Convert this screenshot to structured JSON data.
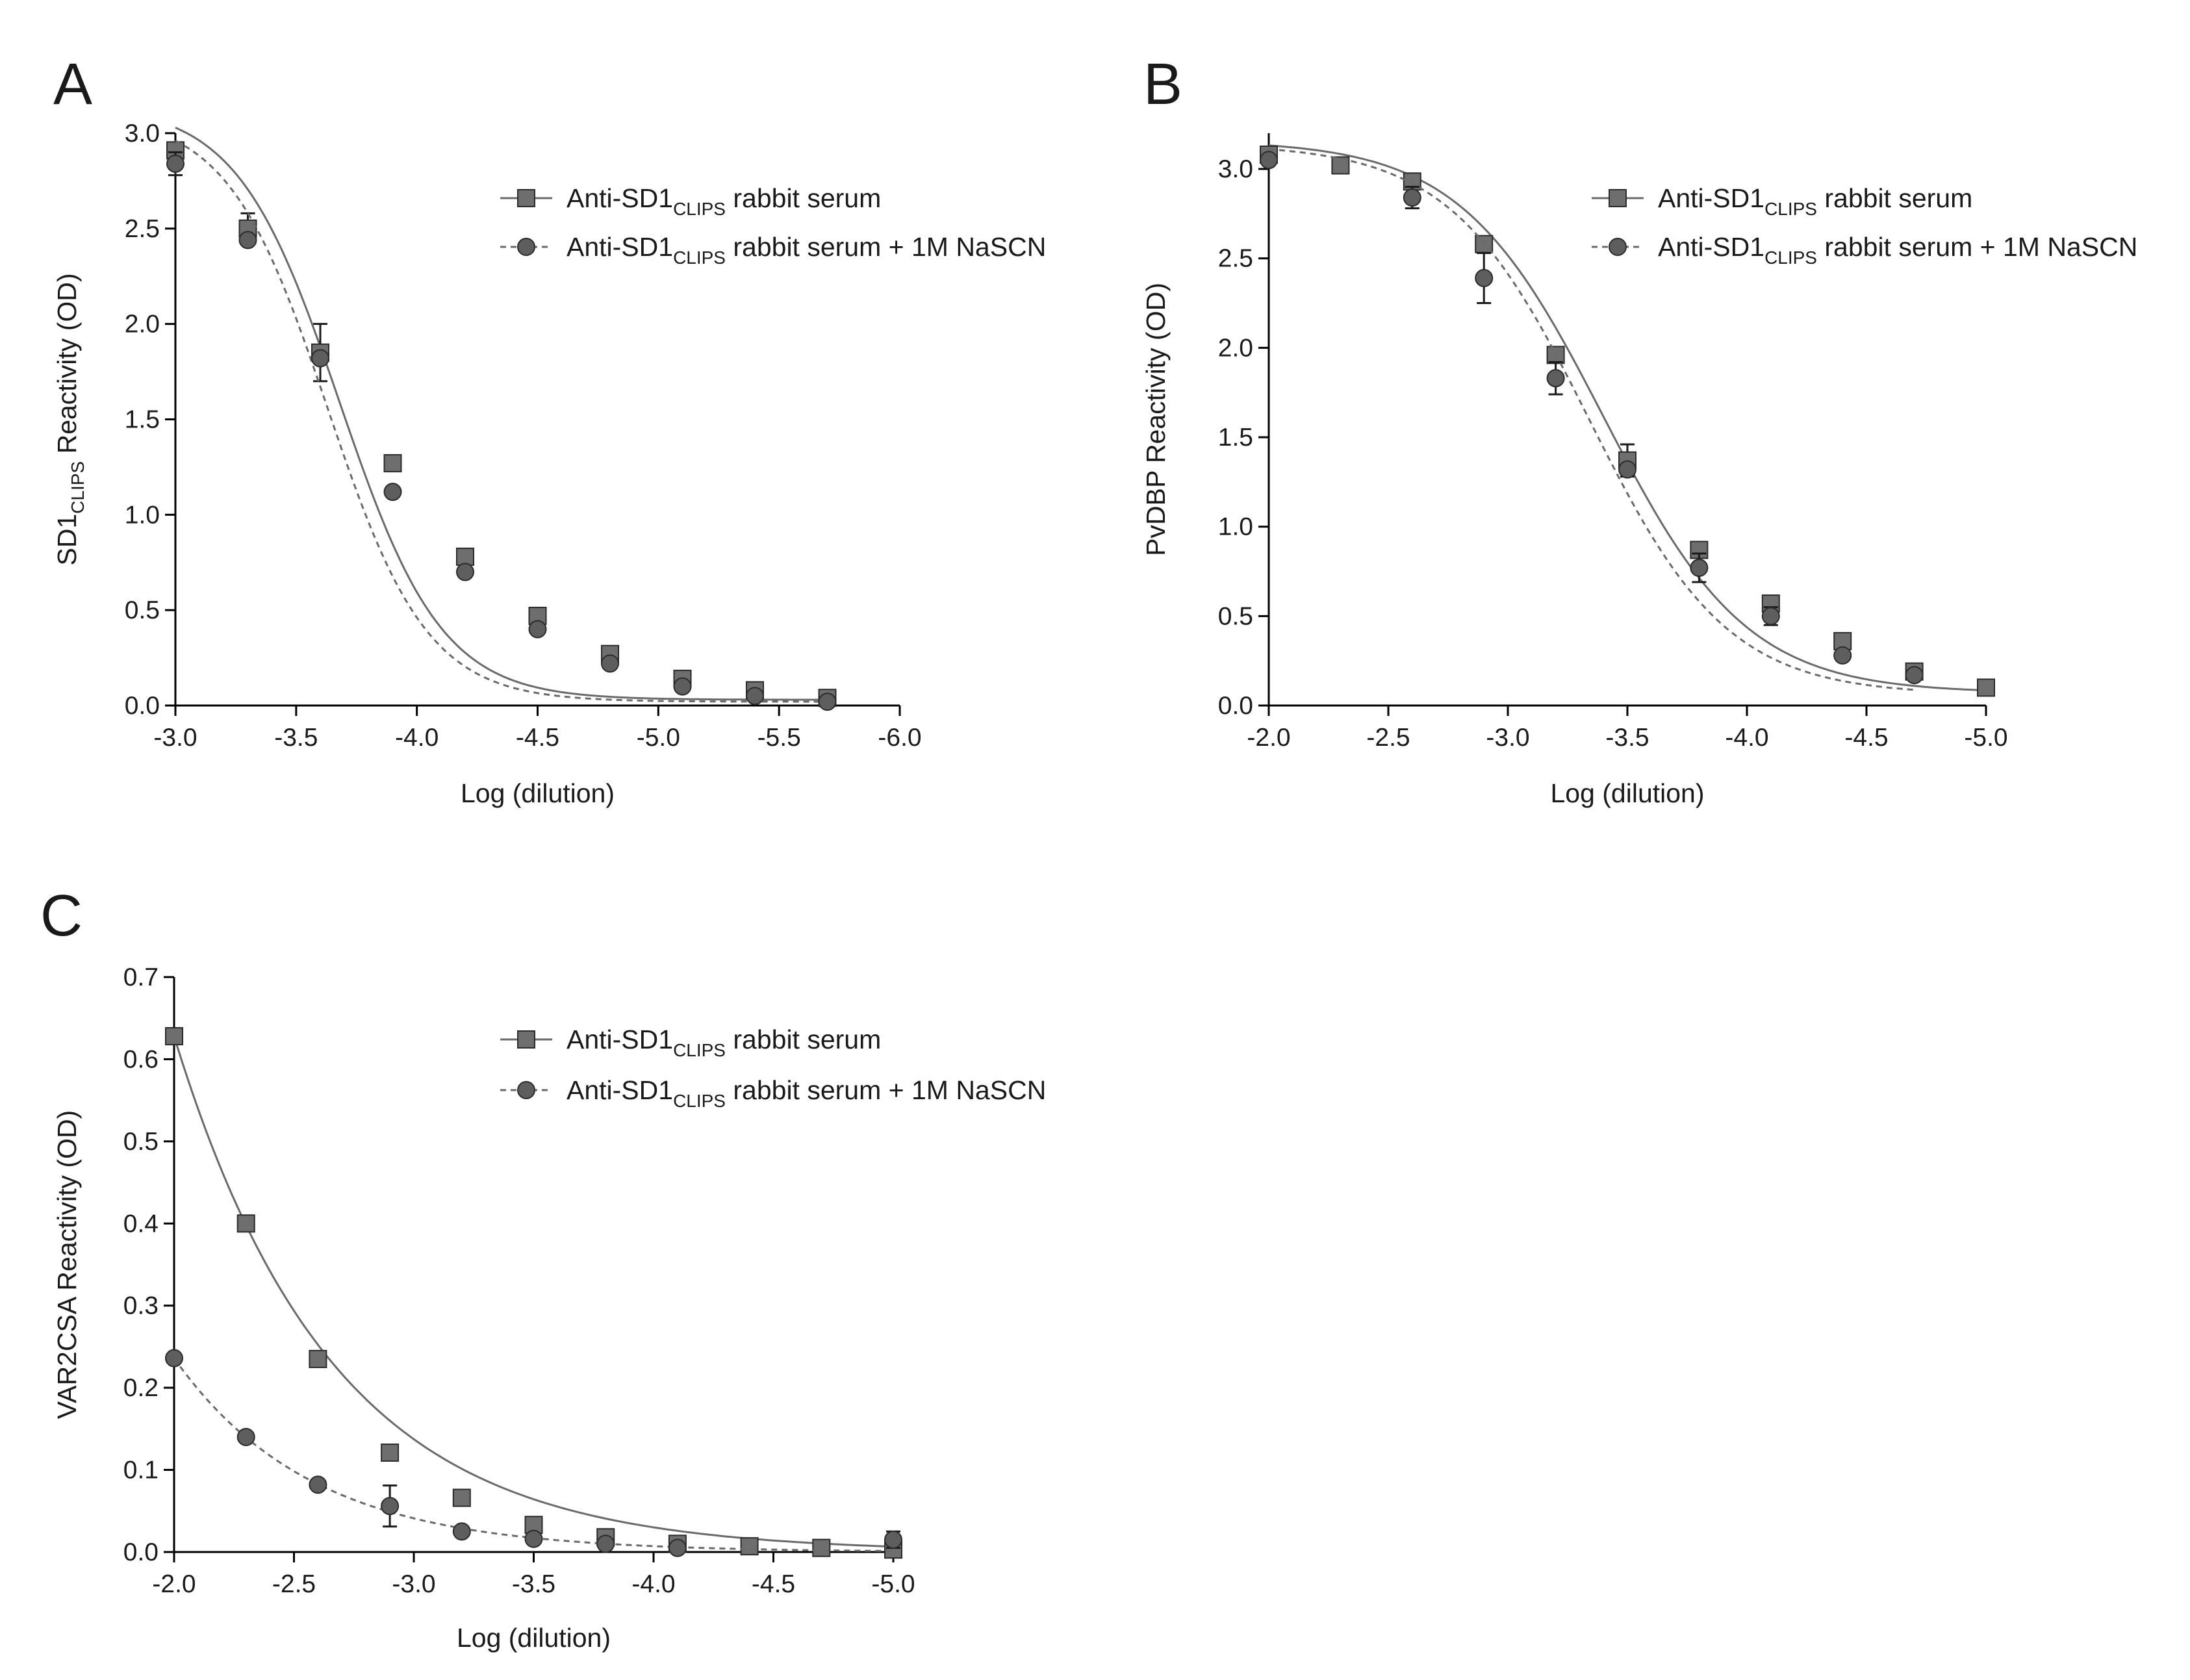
{
  "figure": {
    "colors": {
      "square_fill": "#6e6e6e",
      "circle_fill": "#5e5e5e",
      "line": "#6a6a6a",
      "axis": "#000000"
    }
  },
  "chart_data": [
    {
      "panel": "A",
      "type": "scatter",
      "xlabel": "Log (dilution)",
      "ylabel": {
        "main": "SD1",
        "sub": "CLIPS",
        "rest": " Reactivity (OD)"
      },
      "xlim": [
        -3.0,
        -6.0
      ],
      "ylim": [
        0.0,
        3.0
      ],
      "xticks": [
        -3.0,
        -3.5,
        -4.0,
        -4.5,
        -5.0,
        -5.5,
        -6.0
      ],
      "xtick_labels": [
        "-3.0",
        "-3.5",
        "-4.0",
        "-4.5",
        "-5.0",
        "-5.5",
        "-6.0"
      ],
      "yticks": [
        0.0,
        0.5,
        1.0,
        1.5,
        2.0,
        2.5,
        3.0
      ],
      "ytick_labels": [
        "0.0",
        "0.5",
        "1.0",
        "1.5",
        "2.0",
        "2.5",
        "3.0"
      ],
      "legend_position": "top-right",
      "series": [
        {
          "name": "Anti-SD1CLIPS rabbit serum",
          "legend": {
            "pre": "Anti-SD1",
            "sub": "CLIPS",
            "post": " rabbit serum"
          },
          "marker": "square",
          "line_style": "solid",
          "fit": {
            "top": 3.15,
            "bottom": 0.03,
            "ec50": -3.68,
            "hill": 2.05
          },
          "x": [
            -3.0,
            -3.3,
            -3.6,
            -3.9,
            -4.2,
            -4.5,
            -4.8,
            -5.1,
            -5.4,
            -5.7
          ],
          "y": [
            2.91,
            2.5,
            1.85,
            1.27,
            0.78,
            0.47,
            0.27,
            0.14,
            0.08,
            0.04
          ],
          "err": [
            0,
            0.08,
            0.15,
            0,
            0,
            0,
            0,
            0,
            0,
            0
          ]
        },
        {
          "name": "Anti-SD1CLIPS rabbit serum + 1M NaSCN",
          "legend": {
            "pre": "Anti-SD1",
            "sub": "CLIPS",
            "post": " rabbit serum + 1M NaSCN"
          },
          "marker": "circle",
          "line_style": "dashed",
          "fit": {
            "top": 3.1,
            "bottom": 0.02,
            "ec50": -3.63,
            "hill": 2.1
          },
          "x": [
            -3.0,
            -3.3,
            -3.6,
            -3.9,
            -4.2,
            -4.5,
            -4.8,
            -5.1,
            -5.4,
            -5.7
          ],
          "y": [
            2.84,
            2.44,
            1.82,
            1.12,
            0.7,
            0.4,
            0.22,
            0.1,
            0.05,
            0.02
          ],
          "err": [
            0.06,
            0,
            0,
            0,
            0,
            0,
            0,
            0,
            0,
            0
          ]
        }
      ]
    },
    {
      "panel": "B",
      "type": "scatter",
      "xlabel": "Log (dilution)",
      "ylabel": {
        "main": "PvDBP Reactivity (OD)",
        "sub": "",
        "rest": ""
      },
      "xlim": [
        -2.0,
        -5.0
      ],
      "ylim": [
        0.0,
        3.2
      ],
      "xticks": [
        -2.0,
        -2.5,
        -3.0,
        -3.5,
        -4.0,
        -4.5,
        -5.0
      ],
      "xtick_labels": [
        "-2.0",
        "-2.5",
        "-3.0",
        "-3.5",
        "-4.0",
        "-4.5",
        "-5.0"
      ],
      "yticks": [
        0.0,
        0.5,
        1.0,
        1.5,
        2.0,
        2.5,
        3.0
      ],
      "ytick_labels": [
        "0.0",
        "0.5",
        "1.0",
        "1.5",
        "2.0",
        "2.5",
        "3.0"
      ],
      "legend_position": "top-right",
      "series": [
        {
          "name": "Anti-SD1CLIPS rabbit serum",
          "legend": {
            "pre": "Anti-SD1",
            "sub": "CLIPS",
            "post": " rabbit serum"
          },
          "marker": "square",
          "line_style": "solid",
          "fit": {
            "top": 3.16,
            "bottom": 0.07,
            "ec50": -3.4,
            "hill": 1.45
          },
          "x": [
            -2.0,
            -2.3,
            -2.6,
            -2.9,
            -3.2,
            -3.5,
            -3.8,
            -4.1,
            -4.4,
            -4.7,
            -5.0
          ],
          "y": [
            3.08,
            3.02,
            2.93,
            2.58,
            1.96,
            1.37,
            0.87,
            0.57,
            0.36,
            0.19,
            0.1
          ],
          "err": [
            0,
            0,
            0,
            0,
            0,
            0.09,
            0,
            0,
            0,
            0,
            0
          ]
        },
        {
          "name": "Anti-SD1CLIPS rabbit serum + 1M NaSCN",
          "legend": {
            "pre": "Anti-SD1",
            "sub": "CLIPS",
            "post": " rabbit serum + 1M NaSCN"
          },
          "marker": "circle",
          "line_style": "dashed",
          "fit": {
            "top": 3.14,
            "bottom": 0.06,
            "ec50": -3.34,
            "hill": 1.5
          },
          "x": [
            -2.0,
            -2.6,
            -2.9,
            -3.2,
            -3.5,
            -3.8,
            -4.1,
            -4.4,
            -4.7
          ],
          "y": [
            3.05,
            2.84,
            2.39,
            1.83,
            1.32,
            0.77,
            0.5,
            0.28,
            0.17
          ],
          "err": [
            0,
            0.06,
            0.14,
            0.09,
            0,
            0.08,
            0.05,
            0,
            0
          ]
        }
      ]
    },
    {
      "panel": "C",
      "type": "scatter",
      "xlabel": "Log (dilution)",
      "ylabel": {
        "main": "VAR2CSA Reactivity (OD)",
        "sub": "",
        "rest": ""
      },
      "xlim": [
        -2.0,
        -5.0
      ],
      "ylim": [
        0.0,
        0.7
      ],
      "xticks": [
        -2.0,
        -2.5,
        -3.0,
        -3.5,
        -4.0,
        -4.5,
        -5.0
      ],
      "xtick_labels": [
        "-2.0",
        "-2.5",
        "-3.0",
        "-3.5",
        "-4.0",
        "-4.5",
        "-5.0"
      ],
      "yticks": [
        0.0,
        0.1,
        0.2,
        0.3,
        0.4,
        0.5,
        0.6,
        0.7
      ],
      "ytick_labels": [
        "0.0",
        "0.1",
        "0.2",
        "0.3",
        "0.4",
        "0.5",
        "0.6",
        "0.7"
      ],
      "legend_position": "top-right",
      "series": [
        {
          "name": "Anti-SD1CLIPS rabbit serum",
          "legend": {
            "pre": "Anti-SD1",
            "sub": "CLIPS",
            "post": " rabbit serum"
          },
          "marker": "square",
          "line_style": "solid",
          "fit": {
            "decay": {
              "a": 0.628,
              "k": 1.52,
              "x0": -2.0
            }
          },
          "x": [
            -2.0,
            -2.3,
            -2.6,
            -2.9,
            -3.2,
            -3.5,
            -3.8,
            -4.1,
            -4.4,
            -4.7,
            -5.0
          ],
          "y": [
            0.628,
            0.4,
            0.235,
            0.121,
            0.066,
            0.033,
            0.018,
            0.01,
            0.007,
            0.005,
            0.003
          ],
          "err": [
            0,
            0,
            0,
            0,
            0,
            0,
            0,
            0,
            0,
            0,
            0
          ]
        },
        {
          "name": "Anti-SD1CLIPS rabbit serum + 1M NaSCN",
          "legend": {
            "pre": "Anti-SD1",
            "sub": "CLIPS",
            "post": " rabbit serum + 1M NaSCN"
          },
          "marker": "circle",
          "line_style": "dashed",
          "fit": {
            "decay": {
              "a": 0.236,
              "k": 1.75,
              "x0": -2.0
            }
          },
          "x": [
            -2.0,
            -2.3,
            -2.6,
            -2.9,
            -3.2,
            -3.5,
            -3.8,
            -4.1,
            -5.0
          ],
          "y": [
            0.236,
            0.14,
            0.082,
            0.056,
            0.025,
            0.016,
            0.01,
            0.005,
            0.015
          ],
          "err": [
            0,
            0,
            0,
            0.025,
            0,
            0,
            0,
            0,
            0.01
          ]
        }
      ]
    }
  ]
}
